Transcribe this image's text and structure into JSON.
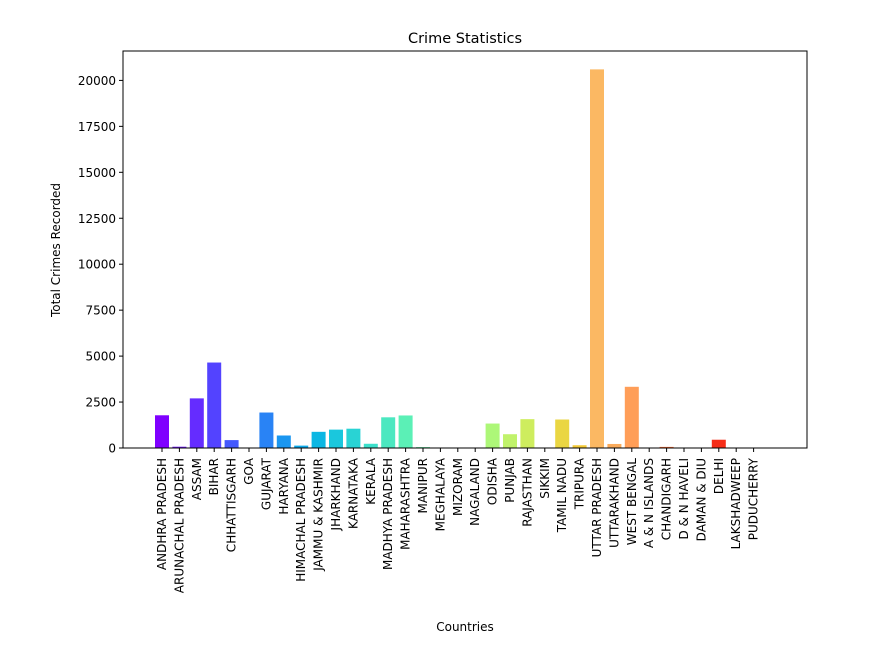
{
  "chart_data": {
    "type": "bar",
    "title": "Crime Statistics",
    "xlabel": "Countries",
    "ylabel": "Total Crimes Recorded",
    "ylim": [
      0,
      21600
    ],
    "yticks": [
      0,
      2500,
      5000,
      7500,
      10000,
      12500,
      15000,
      17500,
      20000
    ],
    "grid": false,
    "categories": [
      "ANDHRA PRADESH",
      "ARUNACHAL PRADESH",
      "ASSAM",
      "BIHAR",
      "CHHATTISGARH",
      "GOA",
      "GUJARAT",
      "HARYANA",
      "HIMACHAL PRADESH",
      "JAMMU & KASHMIR",
      "JHARKHAND",
      "KARNATAKA",
      "KERALA",
      "MADHYA PRADESH",
      "MAHARASHTRA",
      "MANIPUR",
      "MEGHALAYA",
      "MIZORAM",
      "NAGALAND",
      "ODISHA",
      "PUNJAB",
      "RAJASTHAN",
      "SIKKIM",
      "TAMIL NADU",
      "TRIPURA",
      "UTTAR PRADESH",
      "UTTARAKHAND",
      "WEST BENGAL",
      "A & N ISLANDS",
      "CHANDIGARH",
      "D & N HAVELI",
      "DAMAN & DIU",
      "DELHI",
      "LAKSHADWEEP",
      "PUDUCHERRY"
    ],
    "values": [
      1780,
      70,
      2700,
      4650,
      430,
      10,
      1930,
      680,
      130,
      880,
      1000,
      1050,
      230,
      1670,
      1770,
      50,
      20,
      10,
      10,
      1330,
      750,
      1570,
      10,
      1550,
      150,
      20600,
      220,
      3330,
      10,
      60,
      10,
      10,
      450,
      0,
      20
    ],
    "colors": [
      "#7f00ff",
      "#7216ff",
      "#652cff",
      "#5343ff",
      "#4459fd",
      "#376cfa",
      "#2983f5",
      "#1a96f0",
      "#0ba9ea",
      "#0bb7e3",
      "#1ac7dd",
      "#29d3d4",
      "#3be0cb",
      "#4be8c0",
      "#5bf0b6",
      "#6cf8ab",
      "#7cfc9f",
      "#8cfe92",
      "#9ef985",
      "#adf778",
      "#c0f26b",
      "#ceed5e",
      "#ddde51",
      "#ead643",
      "#f4ca36",
      "#fbb863",
      "#f9aa5a",
      "#ff9e58",
      "#ff8342",
      "#ff6e36",
      "#ff5829",
      "#ff3f1b",
      "#f62d18",
      "#ff160b",
      "#ff0000"
    ]
  }
}
